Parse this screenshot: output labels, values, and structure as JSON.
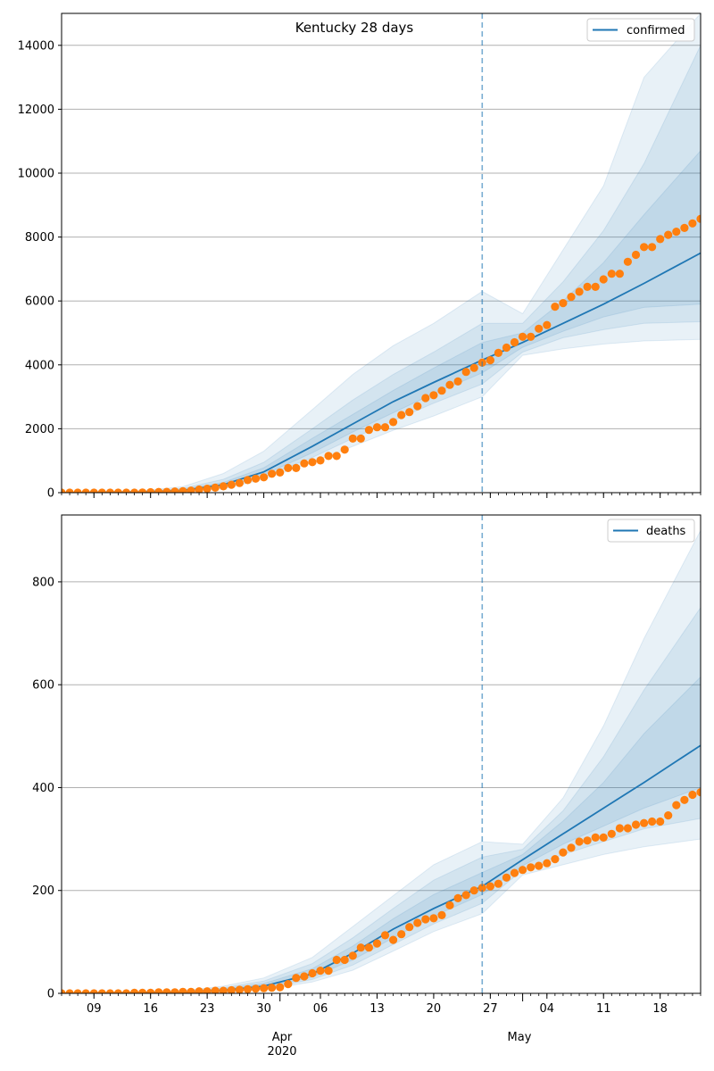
{
  "figure_title": "Kentucky 28 days",
  "x_axis": {
    "day_ticks": [
      "09",
      "16",
      "23",
      "30",
      "06",
      "13",
      "20",
      "27",
      "04",
      "11",
      "18"
    ],
    "month_labels": [
      "Apr",
      "May"
    ],
    "year_label": "2020"
  },
  "chart_data": [
    {
      "type": "line",
      "title": "Kentucky 28 days",
      "legend": [
        "confirmed"
      ],
      "legend_position": "top-right",
      "grid": "horizontal",
      "xlim": [
        "2020-03-05",
        "2020-05-23"
      ],
      "ylim": [
        0,
        15000
      ],
      "yticks": [
        0,
        2000,
        4000,
        6000,
        8000,
        10000,
        12000,
        14000
      ],
      "forecast_start": "2020-04-26",
      "colors": {
        "model": "#1f77b4",
        "observed": "#ff7f0e",
        "band": "#1f77b4"
      },
      "model_line": {
        "name": "confirmed",
        "x": [
          "2020-03-05",
          "2020-03-15",
          "2020-03-20",
          "2020-03-25",
          "2020-03-30",
          "2020-04-05",
          "2020-04-10",
          "2020-04-15",
          "2020-04-20",
          "2020-04-26",
          "2020-05-01",
          "2020-05-06",
          "2020-05-11",
          "2020-05-16",
          "2020-05-23"
        ],
        "y": [
          0,
          20,
          70,
          250,
          650,
          1450,
          2150,
          2850,
          3450,
          4150,
          4700,
          5300,
          5900,
          6550,
          7500
        ]
      },
      "bands": [
        {
          "x": [
            "2020-03-05",
            "2020-03-15",
            "2020-03-20",
            "2020-03-25",
            "2020-03-30",
            "2020-04-05",
            "2020-04-10",
            "2020-04-15",
            "2020-04-20",
            "2020-04-26",
            "2020-05-01",
            "2020-05-06",
            "2020-05-11",
            "2020-05-16",
            "2020-05-23"
          ],
          "lower": [
            0,
            0,
            30,
            120,
            420,
            950,
            1450,
            1950,
            2400,
            3000,
            4300,
            4500,
            4650,
            4750,
            4800
          ],
          "upper": [
            0,
            60,
            190,
            600,
            1300,
            2600,
            3700,
            4600,
            5300,
            6300,
            5600,
            7600,
            9600,
            13000,
            15000
          ]
        },
        {
          "x": [
            "2020-03-05",
            "2020-03-15",
            "2020-03-20",
            "2020-03-25",
            "2020-03-30",
            "2020-04-05",
            "2020-04-10",
            "2020-04-15",
            "2020-04-20",
            "2020-04-26",
            "2020-05-01",
            "2020-05-06",
            "2020-05-11",
            "2020-05-16",
            "2020-05-23"
          ],
          "lower": [
            0,
            5,
            45,
            170,
            500,
            1100,
            1700,
            2250,
            2800,
            3400,
            4400,
            4850,
            5100,
            5300,
            5350
          ],
          "upper": [
            0,
            40,
            130,
            420,
            950,
            2000,
            2900,
            3700,
            4400,
            5300,
            5300,
            6600,
            8200,
            10300,
            14000
          ]
        },
        {
          "x": [
            "2020-03-05",
            "2020-03-15",
            "2020-03-20",
            "2020-03-25",
            "2020-03-30",
            "2020-04-05",
            "2020-04-10",
            "2020-04-15",
            "2020-04-20",
            "2020-04-26",
            "2020-05-01",
            "2020-05-06",
            "2020-05-11",
            "2020-05-16",
            "2020-05-23"
          ],
          "lower": [
            0,
            10,
            55,
            200,
            560,
            1250,
            1900,
            2500,
            3100,
            3750,
            4550,
            5050,
            5500,
            5800,
            5900
          ],
          "upper": [
            0,
            30,
            100,
            320,
            780,
            1700,
            2450,
            3200,
            3900,
            4700,
            5000,
            6000,
            7200,
            8700,
            10700
          ]
        }
      ],
      "observed": {
        "start_date": "2020-03-05",
        "values": [
          0,
          0,
          0,
          0,
          0,
          0,
          0,
          0,
          0,
          0,
          6,
          13,
          21,
          26,
          35,
          47,
          63,
          99,
          123,
          157,
          198,
          248,
          302,
          394,
          439,
          480,
          591,
          632,
          770,
          770,
          917,
          955,
          1008,
          1149,
          1149,
          1346,
          1693,
          1693,
          1963,
          2048,
          2048,
          2210,
          2429,
          2522,
          2707,
          2960,
          3050,
          3192,
          3373,
          3481,
          3779,
          3905,
          4074,
          4146,
          4375,
          4539,
          4708,
          4879,
          4879,
          5130,
          5245,
          5822,
          5934,
          6128,
          6288,
          6440,
          6440,
          6677,
          6853,
          6853,
          7225,
          7444,
          7688,
          7688,
          7935,
          8069,
          8167,
          8286,
          8426,
          8571,
          8571
        ]
      }
    },
    {
      "type": "line",
      "legend": [
        "deaths"
      ],
      "legend_position": "top-right",
      "grid": "horizontal",
      "xlim": [
        "2020-03-05",
        "2020-05-23"
      ],
      "ylim": [
        0,
        930
      ],
      "yticks": [
        0,
        200,
        400,
        600,
        800
      ],
      "forecast_start": "2020-04-26",
      "colors": {
        "model": "#1f77b4",
        "observed": "#ff7f0e",
        "band": "#1f77b4"
      },
      "model_line": {
        "name": "deaths",
        "x": [
          "2020-03-05",
          "2020-03-20",
          "2020-03-25",
          "2020-03-30",
          "2020-04-05",
          "2020-04-10",
          "2020-04-15",
          "2020-04-20",
          "2020-04-26",
          "2020-05-01",
          "2020-05-06",
          "2020-05-11",
          "2020-05-16",
          "2020-05-23"
        ],
        "y": [
          0,
          2,
          6,
          14,
          38,
          78,
          125,
          165,
          208,
          260,
          310,
          360,
          410,
          482
        ]
      },
      "bands": [
        {
          "x": [
            "2020-03-05",
            "2020-03-20",
            "2020-03-25",
            "2020-03-30",
            "2020-04-05",
            "2020-04-10",
            "2020-04-15",
            "2020-04-20",
            "2020-04-26",
            "2020-05-01",
            "2020-05-06",
            "2020-05-11",
            "2020-05-16",
            "2020-05-23"
          ],
          "lower": [
            0,
            0,
            2,
            7,
            22,
            45,
            82,
            120,
            155,
            230,
            250,
            270,
            285,
            300
          ],
          "upper": [
            0,
            5,
            14,
            30,
            70,
            130,
            190,
            250,
            295,
            290,
            380,
            520,
            690,
            900
          ]
        },
        {
          "x": [
            "2020-03-05",
            "2020-03-20",
            "2020-03-25",
            "2020-03-30",
            "2020-04-05",
            "2020-04-10",
            "2020-04-15",
            "2020-04-20",
            "2020-04-26",
            "2020-05-01",
            "2020-05-06",
            "2020-05-11",
            "2020-05-16",
            "2020-05-23"
          ],
          "lower": [
            0,
            1,
            3,
            9,
            27,
            55,
            95,
            135,
            175,
            240,
            270,
            295,
            320,
            340
          ],
          "upper": [
            0,
            4,
            11,
            24,
            58,
            108,
            165,
            220,
            265,
            280,
            355,
            460,
            590,
            750
          ]
        },
        {
          "x": [
            "2020-03-05",
            "2020-03-20",
            "2020-03-25",
            "2020-03-30",
            "2020-04-05",
            "2020-04-10",
            "2020-04-15",
            "2020-04-20",
            "2020-04-26",
            "2020-05-01",
            "2020-05-06",
            "2020-05-11",
            "2020-05-16",
            "2020-05-23"
          ],
          "lower": [
            0,
            1,
            4,
            11,
            32,
            65,
            108,
            150,
            192,
            248,
            290,
            325,
            360,
            400
          ],
          "upper": [
            0,
            3,
            9,
            19,
            48,
            92,
            145,
            192,
            235,
            270,
            335,
            410,
            505,
            615
          ]
        }
      ],
      "observed": {
        "start_date": "2020-03-05",
        "values": [
          0,
          0,
          0,
          0,
          0,
          0,
          0,
          0,
          0,
          1,
          1,
          1,
          2,
          2,
          2,
          3,
          3,
          4,
          4,
          5,
          5,
          6,
          7,
          8,
          9,
          10,
          11,
          12,
          18,
          30,
          33,
          39,
          44,
          44,
          65,
          65,
          73,
          89,
          89,
          97,
          113,
          104,
          115,
          129,
          137,
          144,
          146,
          152,
          171,
          185,
          191,
          200,
          205,
          208,
          213,
          225,
          234,
          240,
          245,
          248,
          253,
          261,
          274,
          283,
          295,
          297,
          303,
          303,
          310,
          321,
          321,
          328,
          331,
          334,
          334,
          346,
          366,
          376,
          386,
          391,
          391
        ]
      }
    }
  ]
}
